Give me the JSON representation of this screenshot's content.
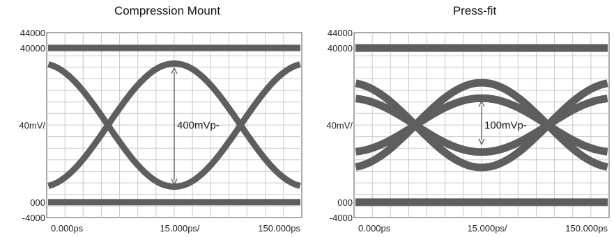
{
  "chart_data": [
    {
      "type": "line",
      "title": "Compression Mount",
      "y_tick_labels": [
        "44000",
        "40000",
        "40mV/",
        "000",
        "-4000"
      ],
      "x_tick_labels": [
        "0.000ps",
        "15.000ps/",
        "150.000ps"
      ],
      "annotation": "400mVp-",
      "ylim": [
        -40,
        440
      ],
      "xlim": [
        0,
        150
      ],
      "grid": true,
      "levels": {
        "rail_high": 400,
        "rail_low": 0,
        "swing_low": 40,
        "swing_high": 360
      },
      "crossing_times_ps": [
        36,
        114
      ],
      "eye_opening_mV": 400
    },
    {
      "type": "line",
      "title": "Press-fit",
      "y_tick_labels": [
        "44000",
        "40000",
        "40mV/",
        "000",
        "-4000"
      ],
      "x_tick_labels": [
        "0.000ps",
        "15.000ps/",
        "150.000ps"
      ],
      "annotation": "100mVp-",
      "ylim": [
        -40,
        440
      ],
      "xlim": [
        0,
        150
      ],
      "grid": true,
      "levels": {
        "rail_high": 400,
        "rail_low": 0,
        "swing_low": 130,
        "swing_high": 270
      },
      "crossing_times_ps": [
        36,
        114
      ],
      "eye_opening_mV": 100
    }
  ]
}
